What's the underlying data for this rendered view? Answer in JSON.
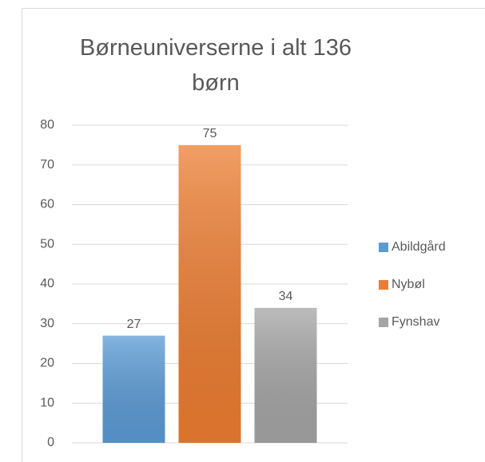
{
  "chart_data": {
    "type": "bar",
    "title": "Børneuniverserne i alt 136 børn",
    "categories": [
      null
    ],
    "series": [
      {
        "name": "Abildgård",
        "color": "#5b9bd5",
        "values": [
          27
        ]
      },
      {
        "name": "Nybøl",
        "color": "#ed7d31",
        "values": [
          75
        ]
      },
      {
        "name": "Fynshav",
        "color": "#a5a5a5",
        "values": [
          34
        ]
      }
    ],
    "ylim": [
      0,
      80
    ],
    "yticks": [
      0,
      10,
      20,
      30,
      40,
      50,
      60,
      70,
      80
    ],
    "grid": true,
    "legend": "right"
  }
}
